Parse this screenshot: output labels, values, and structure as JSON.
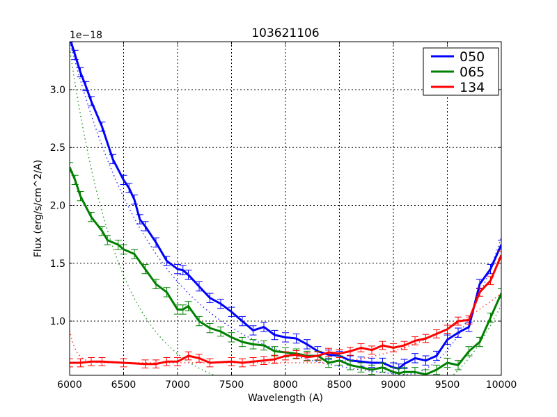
{
  "chart_data": {
    "type": "line",
    "title": "103621106",
    "xlabel": "Wavelength (A)",
    "ylabel": "Flux (erg/s/cm^2/A)",
    "y_offset_label": "1e−18",
    "xlim": [
      6000,
      10000
    ],
    "ylim": [
      0.532,
      3.414
    ],
    "xticks": [
      6000,
      6500,
      7000,
      7500,
      8000,
      8500,
      9000,
      9500,
      10000
    ],
    "xtick_labels": [
      "6000",
      "6500",
      "7000",
      "7500",
      "8000",
      "8500",
      "9000",
      "9500",
      "10000"
    ],
    "yticks": [
      1.0,
      1.5,
      2.0,
      2.5,
      3.0
    ],
    "ytick_labels": [
      "1.0",
      "1.5",
      "2.0",
      "2.5",
      "3.0"
    ],
    "grid": true,
    "legend_position": "upper right",
    "series": [
      {
        "name": "050",
        "color": "#0000ff",
        "x": [
          6000,
          6050,
          6100,
          6150,
          6200,
          6300,
          6400,
          6500,
          6550,
          6600,
          6650,
          6700,
          6800,
          6900,
          7000,
          7050,
          7100,
          7200,
          7300,
          7400,
          7500,
          7600,
          7700,
          7800,
          7900,
          8000,
          8100,
          8200,
          8300,
          8400,
          8500,
          8600,
          8700,
          8800,
          8900,
          9000,
          9050,
          9100,
          9200,
          9300,
          9400,
          9500,
          9600,
          9700,
          9800,
          9900,
          10000
        ],
        "values": [
          3.45,
          3.3,
          3.15,
          3.03,
          2.9,
          2.68,
          2.4,
          2.22,
          2.15,
          2.05,
          1.88,
          1.82,
          1.68,
          1.52,
          1.45,
          1.44,
          1.4,
          1.3,
          1.2,
          1.15,
          1.08,
          1.0,
          0.92,
          0.95,
          0.88,
          0.86,
          0.85,
          0.8,
          0.74,
          0.71,
          0.7,
          0.66,
          0.65,
          0.64,
          0.64,
          0.6,
          0.59,
          0.63,
          0.68,
          0.66,
          0.7,
          0.84,
          0.9,
          0.95,
          1.32,
          1.45,
          1.66
        ],
        "error": 0.04,
        "fit": {
          "a": 0.47,
          "b": 2.95,
          "scale": 820,
          "c": 0.55,
          "d": 1.23,
          "m": 9050
        }
      },
      {
        "name": "065",
        "color": "#008000",
        "x": [
          6000,
          6050,
          6100,
          6200,
          6300,
          6350,
          6450,
          6500,
          6600,
          6700,
          6800,
          6900,
          7000,
          7050,
          7100,
          7200,
          7300,
          7400,
          7500,
          7600,
          7700,
          7800,
          7900,
          8000,
          8100,
          8200,
          8300,
          8400,
          8500,
          8600,
          8700,
          8800,
          8900,
          9000,
          9050,
          9100,
          9200,
          9300,
          9400,
          9500,
          9600,
          9700,
          9800,
          9900,
          10000
        ],
        "values": [
          2.33,
          2.22,
          2.08,
          1.9,
          1.78,
          1.7,
          1.66,
          1.62,
          1.58,
          1.45,
          1.32,
          1.25,
          1.1,
          1.1,
          1.13,
          1.0,
          0.94,
          0.91,
          0.86,
          0.82,
          0.8,
          0.79,
          0.74,
          0.73,
          0.72,
          0.7,
          0.7,
          0.64,
          0.66,
          0.62,
          0.6,
          0.58,
          0.6,
          0.56,
          0.55,
          0.56,
          0.56,
          0.54,
          0.58,
          0.64,
          0.62,
          0.74,
          0.82,
          1.03,
          1.24
        ],
        "error": 0.04,
        "fit": {
          "a": 0.36,
          "b": 3.0,
          "scale": 470,
          "c": 0.52,
          "d": 0.78,
          "m": 9100
        }
      },
      {
        "name": "134",
        "color": "#ff0000",
        "x": [
          6000,
          6100,
          6200,
          6300,
          6500,
          6700,
          6800,
          6900,
          7000,
          7100,
          7200,
          7300,
          7500,
          7600,
          7700,
          7800,
          7900,
          8000,
          8100,
          8200,
          8300,
          8400,
          8500,
          8600,
          8700,
          8800,
          8900,
          9000,
          9100,
          9200,
          9300,
          9400,
          9500,
          9600,
          9700,
          9800,
          9900,
          10000
        ],
        "values": [
          0.64,
          0.64,
          0.65,
          0.65,
          0.64,
          0.63,
          0.63,
          0.65,
          0.65,
          0.7,
          0.68,
          0.64,
          0.65,
          0.64,
          0.65,
          0.66,
          0.67,
          0.7,
          0.71,
          0.69,
          0.7,
          0.73,
          0.72,
          0.74,
          0.77,
          0.75,
          0.79,
          0.77,
          0.79,
          0.83,
          0.85,
          0.89,
          0.93,
          1.0,
          1.01,
          1.25,
          1.35,
          1.57
        ],
        "error": 0.035,
        "fit": {
          "a": 0.64,
          "b": 0.28,
          "scale": 60,
          "c": 0.48,
          "d": 0.6,
          "m": 8200
        }
      }
    ]
  }
}
